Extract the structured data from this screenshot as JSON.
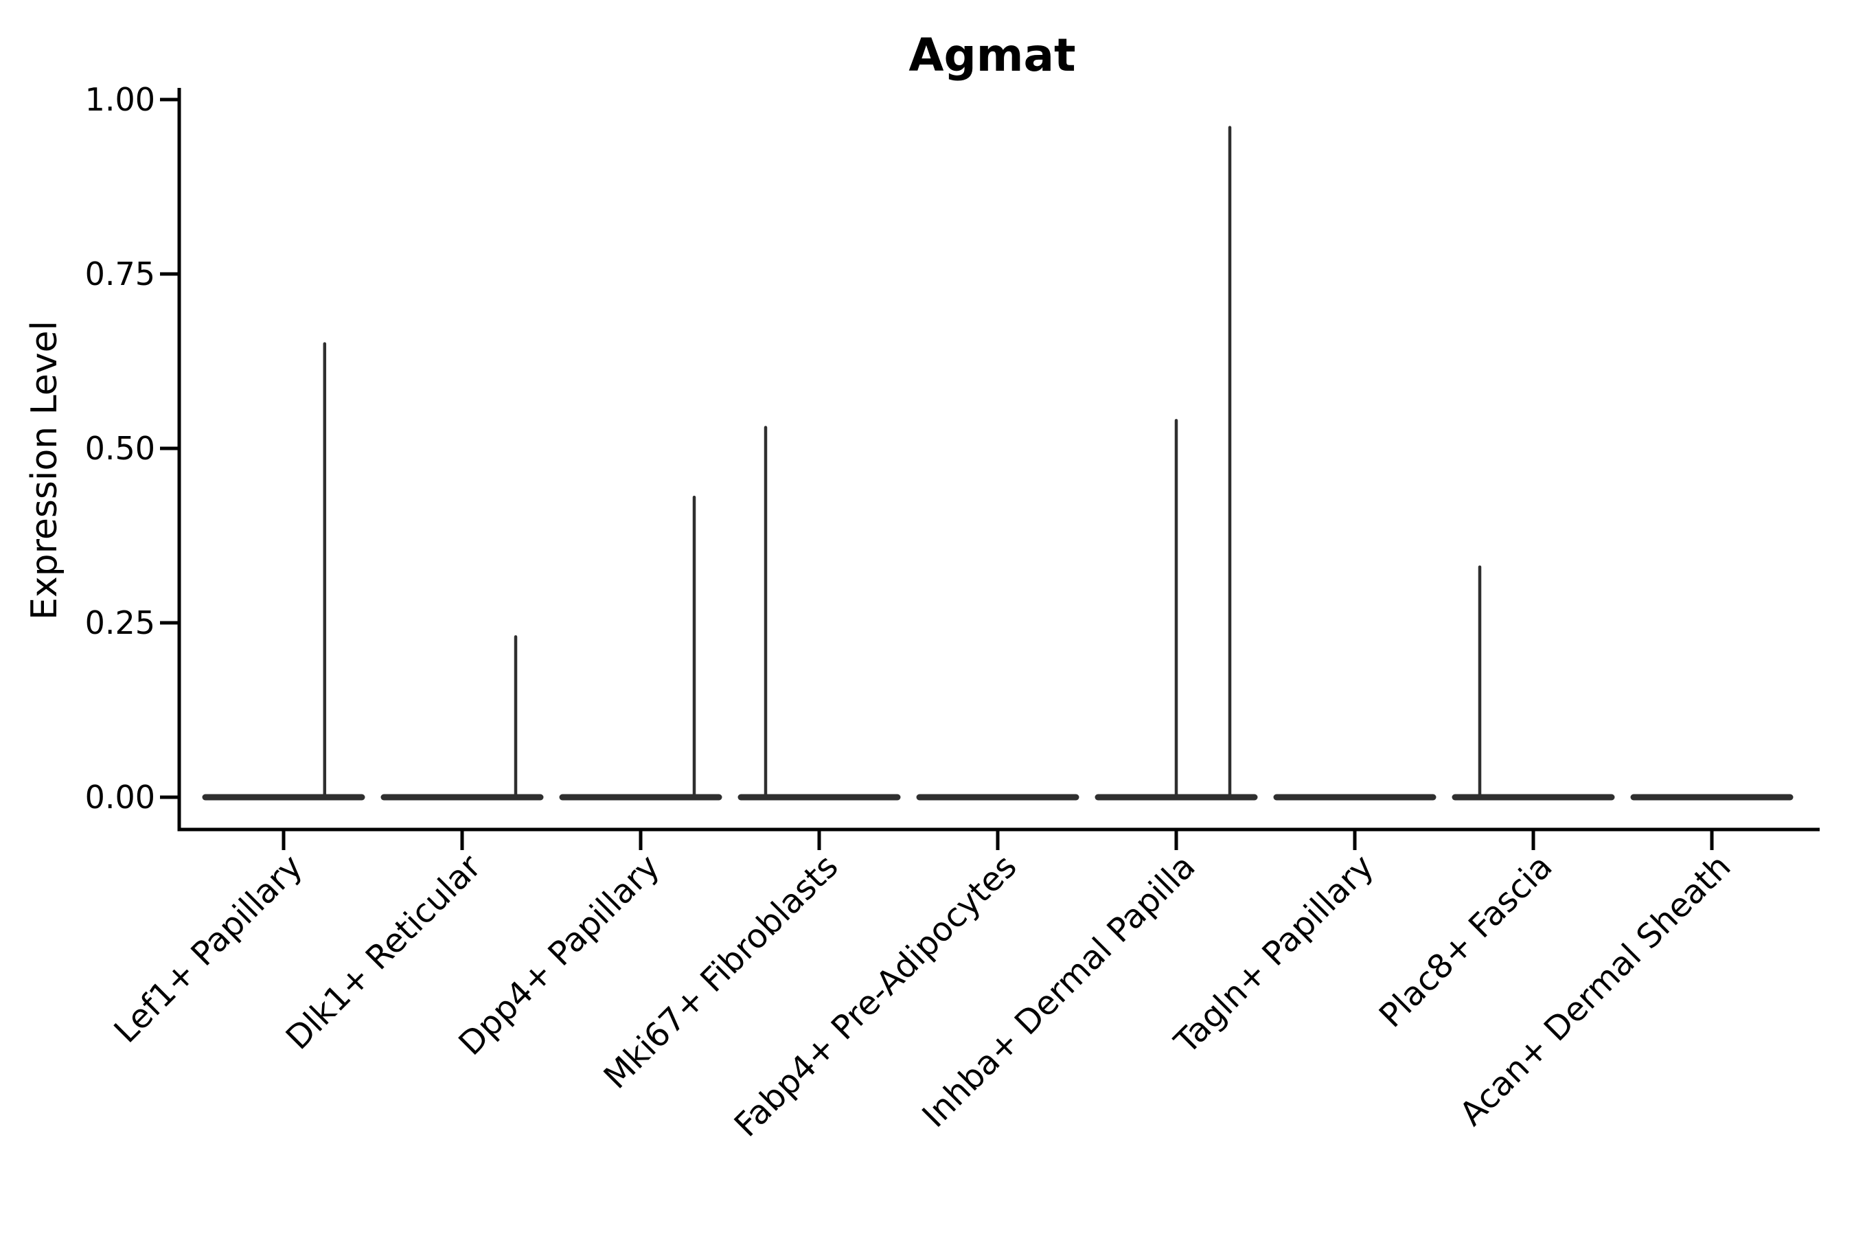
{
  "figure": {
    "title": "Agmat",
    "background": "#ffffff"
  },
  "colors": {
    "violin": "#2f2f2f",
    "axis": "#000000",
    "text": "#000000",
    "background": "#ffffff"
  },
  "chart_data": {
    "type": "violin",
    "title": "Agmat",
    "xlabel": "",
    "ylabel": "Expression Level",
    "ylim": [
      -0.05,
      1.02
    ],
    "yticks": [
      0,
      0.25,
      0.5,
      0.75,
      1
    ],
    "ytick_labels": [
      "0.00",
      "0.25",
      "0.50",
      "0.75",
      "1.00"
    ],
    "grid": false,
    "legend": false,
    "x_labels_rotation_deg": 45,
    "categories": [
      "Lef1+ Papillary",
      "Dlk1+ Reticular",
      "Dpp4+ Papillary",
      "Mki67+ Fibroblasts",
      "Fabp4+ Pre-Adipocytes",
      "Inhba+ Dermal Papilla",
      "Tagln+ Papillary",
      "Plac8+ Fascia",
      "Acan+ Dermal Sheath"
    ],
    "series": [
      {
        "name": "Lef1+ Papillary",
        "baseline": 0,
        "max_expression": 0.65,
        "spikes": [
          {
            "value": 0.65,
            "x_offset": 0.23
          }
        ]
      },
      {
        "name": "Dlk1+ Reticular",
        "baseline": 0,
        "max_expression": 0.23,
        "spikes": [
          {
            "value": 0.23,
            "x_offset": 0.3
          }
        ]
      },
      {
        "name": "Dpp4+ Papillary",
        "baseline": 0,
        "max_expression": 0.43,
        "spikes": [
          {
            "value": 0.43,
            "x_offset": 0.3
          }
        ]
      },
      {
        "name": "Mki67+ Fibroblasts",
        "baseline": 0,
        "max_expression": 0.53,
        "spikes": [
          {
            "value": 0.53,
            "x_offset": -0.3
          }
        ]
      },
      {
        "name": "Fabp4+ Pre-Adipocytes",
        "baseline": 0,
        "max_expression": 0.0,
        "spikes": []
      },
      {
        "name": "Inhba+ Dermal Papilla",
        "baseline": 0,
        "max_expression": 0.96,
        "spikes": [
          {
            "value": 0.54,
            "x_offset": 0.0
          },
          {
            "value": 0.96,
            "x_offset": 0.3
          }
        ]
      },
      {
        "name": "Tagln+ Papillary",
        "baseline": 0,
        "max_expression": 0.0,
        "spikes": []
      },
      {
        "name": "Plac8+ Fascia",
        "baseline": 0,
        "max_expression": 0.33,
        "spikes": [
          {
            "value": 0.33,
            "x_offset": -0.3
          }
        ]
      },
      {
        "name": "Acan+ Dermal Sheath",
        "baseline": 0,
        "max_expression": 0.0,
        "spikes": []
      }
    ]
  }
}
